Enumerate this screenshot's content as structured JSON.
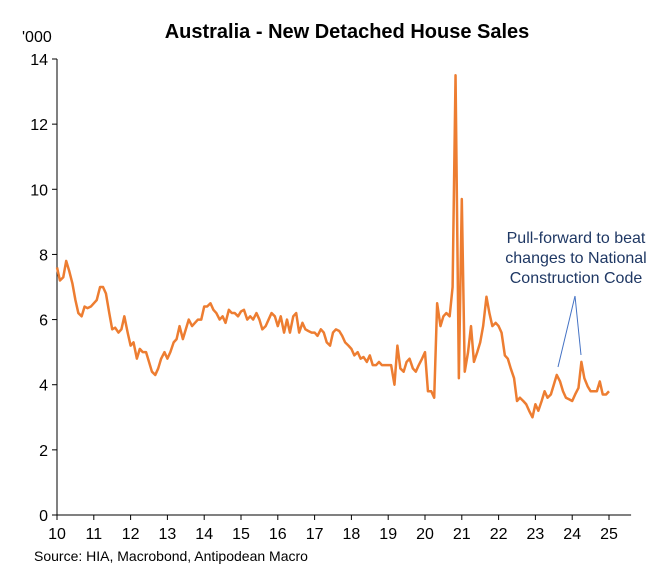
{
  "chart_data": {
    "type": "line",
    "title": "Australia - New Detached House Sales",
    "y_unit_label": "'000",
    "source": "Source: HIA, Macrobond, Antipodean Macro",
    "annotation": [
      "Pull-forward to beat",
      "changes to National",
      "Construction Code"
    ],
    "annotation_color": "#1f3864",
    "xlim": [
      2010,
      2025.6
    ],
    "xticks": [
      {
        "value": 2010,
        "label": "10"
      },
      {
        "value": 2011,
        "label": "11"
      },
      {
        "value": 2012,
        "label": "12"
      },
      {
        "value": 2013,
        "label": "13"
      },
      {
        "value": 2014,
        "label": "14"
      },
      {
        "value": 2015,
        "label": "15"
      },
      {
        "value": 2016,
        "label": "16"
      },
      {
        "value": 2017,
        "label": "17"
      },
      {
        "value": 2018,
        "label": "18"
      },
      {
        "value": 2019,
        "label": "19"
      },
      {
        "value": 2020,
        "label": "20"
      },
      {
        "value": 2021,
        "label": "21"
      },
      {
        "value": 2022,
        "label": "22"
      },
      {
        "value": 2023,
        "label": "23"
      },
      {
        "value": 2024,
        "label": "24"
      },
      {
        "value": 2025,
        "label": "25"
      }
    ],
    "ylim": [
      0,
      14
    ],
    "yticks": [
      0,
      2,
      4,
      6,
      8,
      10,
      12,
      14
    ],
    "x": [
      2010,
      2010.08,
      2010.17,
      2010.25,
      2010.33,
      2010.42,
      2010.5,
      2010.58,
      2010.67,
      2010.75,
      2010.83,
      2010.92,
      2011,
      2011.08,
      2011.17,
      2011.25,
      2011.33,
      2011.42,
      2011.5,
      2011.58,
      2011.67,
      2011.75,
      2011.83,
      2011.92,
      2012,
      2012.08,
      2012.17,
      2012.25,
      2012.33,
      2012.42,
      2012.5,
      2012.58,
      2012.67,
      2012.75,
      2012.83,
      2012.92,
      2013,
      2013.08,
      2013.17,
      2013.25,
      2013.33,
      2013.42,
      2013.5,
      2013.58,
      2013.67,
      2013.75,
      2013.83,
      2013.92,
      2014,
      2014.08,
      2014.17,
      2014.25,
      2014.33,
      2014.42,
      2014.5,
      2014.58,
      2014.67,
      2014.75,
      2014.83,
      2014.92,
      2015,
      2015.08,
      2015.17,
      2015.25,
      2015.33,
      2015.42,
      2015.5,
      2015.58,
      2015.67,
      2015.75,
      2015.83,
      2015.92,
      2016,
      2016.08,
      2016.17,
      2016.25,
      2016.33,
      2016.42,
      2016.5,
      2016.58,
      2016.67,
      2016.75,
      2016.83,
      2016.92,
      2017,
      2017.08,
      2017.17,
      2017.25,
      2017.33,
      2017.42,
      2017.5,
      2017.58,
      2017.67,
      2017.75,
      2017.83,
      2017.92,
      2018,
      2018.08,
      2018.17,
      2018.25,
      2018.33,
      2018.42,
      2018.5,
      2018.58,
      2018.67,
      2018.75,
      2018.83,
      2018.92,
      2019,
      2019.08,
      2019.17,
      2019.25,
      2019.33,
      2019.42,
      2019.5,
      2019.58,
      2019.67,
      2019.75,
      2019.83,
      2019.92,
      2020,
      2020.08,
      2020.17,
      2020.25,
      2020.33,
      2020.42,
      2020.5,
      2020.58,
      2020.67,
      2020.75,
      2020.83,
      2020.92,
      2021,
      2021.08,
      2021.17,
      2021.25,
      2021.33,
      2021.42,
      2021.5,
      2021.58,
      2021.67,
      2021.75,
      2021.83,
      2021.92,
      2022,
      2022.08,
      2022.17,
      2022.25,
      2022.33,
      2022.42,
      2022.5,
      2022.58,
      2022.67,
      2022.75,
      2022.83,
      2022.92,
      2023,
      2023.08,
      2023.17,
      2023.25,
      2023.33,
      2023.42,
      2023.5,
      2023.58,
      2023.67,
      2023.75,
      2023.83,
      2023.92,
      2024,
      2024.08,
      2024.17,
      2024.25,
      2024.33,
      2024.42,
      2024.5,
      2024.58,
      2024.67,
      2024.75,
      2024.83,
      2024.92,
      2025
    ],
    "series": [
      {
        "name": "New detached house sales",
        "color": "#ed7d31",
        "values": [
          7.6,
          7.2,
          7.3,
          7.8,
          7.5,
          7.1,
          6.6,
          6.2,
          6.1,
          6.4,
          6.35,
          6.4,
          6.5,
          6.6,
          7.0,
          7.0,
          6.8,
          6.2,
          5.7,
          5.75,
          5.6,
          5.7,
          6.1,
          5.6,
          5.2,
          5.3,
          4.8,
          5.1,
          5.0,
          5.0,
          4.7,
          4.4,
          4.3,
          4.5,
          4.8,
          5.0,
          4.8,
          5.0,
          5.3,
          5.4,
          5.8,
          5.4,
          5.7,
          6.0,
          5.8,
          5.9,
          6.0,
          6.0,
          6.4,
          6.4,
          6.5,
          6.3,
          6.2,
          6.0,
          6.1,
          5.9,
          6.3,
          6.2,
          6.2,
          6.1,
          6.25,
          6.3,
          6.0,
          6.1,
          6.0,
          6.2,
          6.0,
          5.7,
          5.8,
          6.0,
          6.2,
          6.1,
          5.8,
          6.1,
          5.6,
          6.0,
          5.6,
          6.1,
          6.2,
          5.6,
          5.9,
          5.7,
          5.65,
          5.6,
          5.6,
          5.5,
          5.7,
          5.6,
          5.3,
          5.2,
          5.6,
          5.7,
          5.65,
          5.5,
          5.3,
          5.2,
          5.1,
          4.9,
          5.0,
          4.8,
          4.85,
          4.7,
          4.9,
          4.6,
          4.6,
          4.7,
          4.6,
          4.6,
          4.6,
          4.6,
          4.0,
          5.2,
          4.5,
          4.4,
          4.7,
          4.8,
          4.5,
          4.4,
          4.6,
          4.8,
          5.0,
          3.8,
          3.8,
          3.6,
          6.5,
          5.8,
          6.1,
          6.2,
          6.1,
          7.0,
          13.5,
          4.2,
          9.7,
          4.4,
          5.0,
          5.8,
          4.7,
          5.0,
          5.3,
          5.8,
          6.7,
          6.2,
          5.8,
          5.9,
          5.8,
          5.6,
          4.9,
          4.8,
          4.5,
          4.2,
          3.5,
          3.6,
          3.5,
          3.4,
          3.2,
          3.0,
          3.4,
          3.2,
          3.5,
          3.8,
          3.6,
          3.7,
          4.0,
          4.3,
          4.1,
          3.8,
          3.6,
          3.55,
          3.5,
          3.7,
          3.9,
          4.7,
          4.2,
          3.95,
          3.8,
          3.8,
          3.8,
          4.1,
          3.7,
          3.7,
          3.8
        ]
      }
    ]
  }
}
